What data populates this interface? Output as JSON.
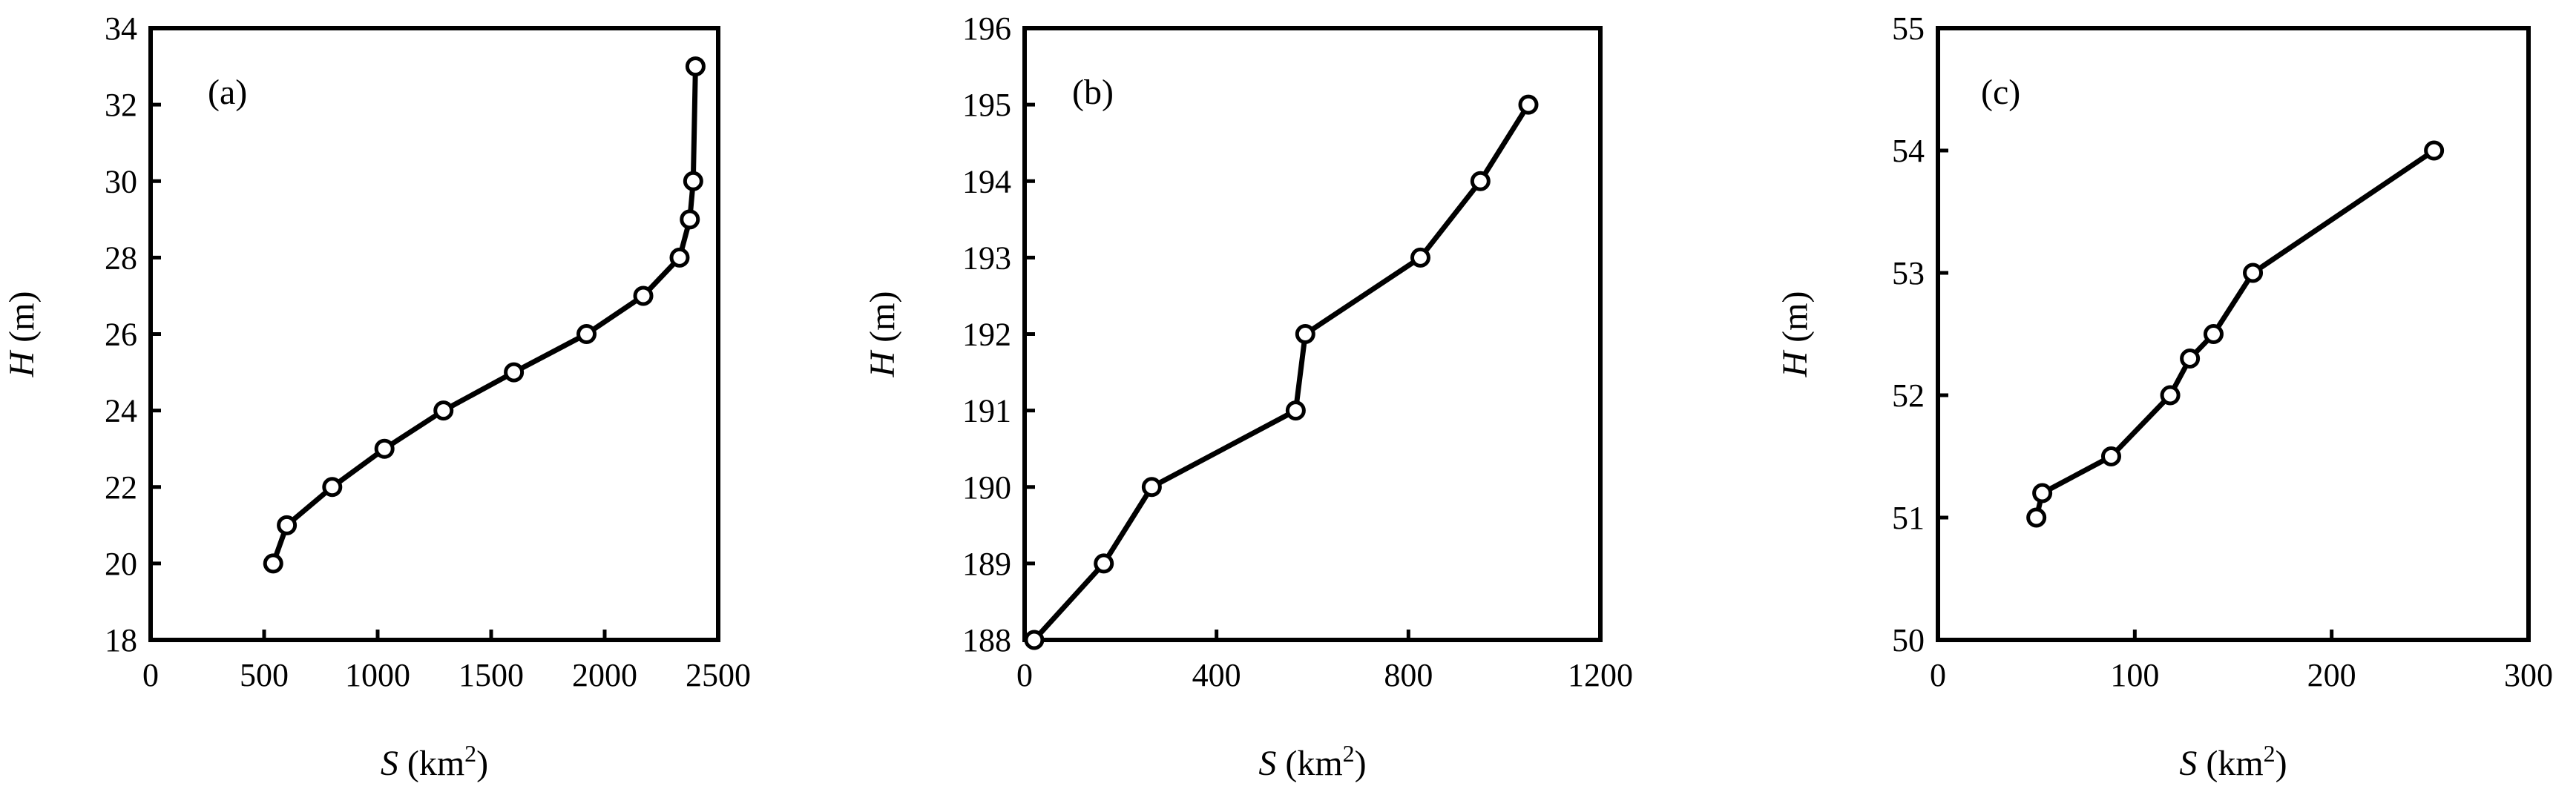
{
  "chart_data": [
    {
      "type": "line",
      "panel_label": "(a)",
      "xlabel": {
        "var": "S",
        "unit": " (km",
        "sup": "2",
        "close": ")"
      },
      "ylabel": {
        "var": "H",
        "unit": " (m)"
      },
      "xlim": [
        0,
        2500
      ],
      "ylim": [
        18,
        34
      ],
      "xticks": [
        0,
        500,
        1000,
        1500,
        2000,
        2500
      ],
      "yticks": [
        18,
        20,
        22,
        24,
        26,
        28,
        30,
        32,
        34
      ],
      "xtick_labels": [
        "0",
        "500",
        "1000",
        "1500",
        "2000",
        "2500"
      ],
      "ytick_labels": [
        "18",
        "20",
        "22",
        "24",
        "26",
        "28",
        "30",
        "32",
        "34"
      ],
      "grid": false,
      "series": [
        {
          "x": [
            540,
            600,
            800,
            1030,
            1290,
            1600,
            1920,
            2170,
            2330,
            2375,
            2390,
            2400
          ],
          "y": [
            20,
            21,
            22,
            23,
            24,
            25,
            26,
            27,
            28,
            29,
            30,
            33
          ]
        }
      ]
    },
    {
      "type": "line",
      "panel_label": "(b)",
      "xlabel": {
        "var": "S",
        "unit": " (km",
        "sup": "2",
        "close": ")"
      },
      "ylabel": {
        "var": "H",
        "unit": " (m)"
      },
      "xlim": [
        0,
        1200
      ],
      "ylim": [
        188,
        196
      ],
      "xticks": [
        0,
        400,
        800,
        1200
      ],
      "yticks": [
        188,
        189,
        190,
        191,
        192,
        193,
        194,
        195,
        196
      ],
      "xtick_labels": [
        "0",
        "400",
        "800",
        "1200"
      ],
      "ytick_labels": [
        "188",
        "189",
        "190",
        "191",
        "192",
        "193",
        "194",
        "195",
        "196"
      ],
      "grid": false,
      "series": [
        {
          "x": [
            20,
            165,
            265,
            565,
            585,
            825,
            950,
            1050
          ],
          "y": [
            188,
            189,
            190,
            191,
            192,
            193,
            194,
            195
          ]
        }
      ]
    },
    {
      "type": "line",
      "panel_label": "(c)",
      "xlabel": {
        "var": "S",
        "unit": " (km",
        "sup": "2",
        "close": ")"
      },
      "ylabel": {
        "var": "H",
        "unit": " (m)"
      },
      "xlim": [
        0,
        300
      ],
      "ylim": [
        50,
        55
      ],
      "xticks": [
        0,
        100,
        200,
        300
      ],
      "yticks": [
        50,
        51,
        52,
        53,
        54,
        55
      ],
      "xtick_labels": [
        "0",
        "100",
        "200",
        "300"
      ],
      "ytick_labels": [
        "50",
        "51",
        "52",
        "53",
        "54",
        "55"
      ],
      "grid": false,
      "series": [
        {
          "x": [
            50,
            53,
            88,
            118,
            128,
            140,
            160,
            252
          ],
          "y": [
            51,
            51.2,
            51.5,
            52,
            52.3,
            52.5,
            53,
            54
          ]
        }
      ]
    }
  ]
}
